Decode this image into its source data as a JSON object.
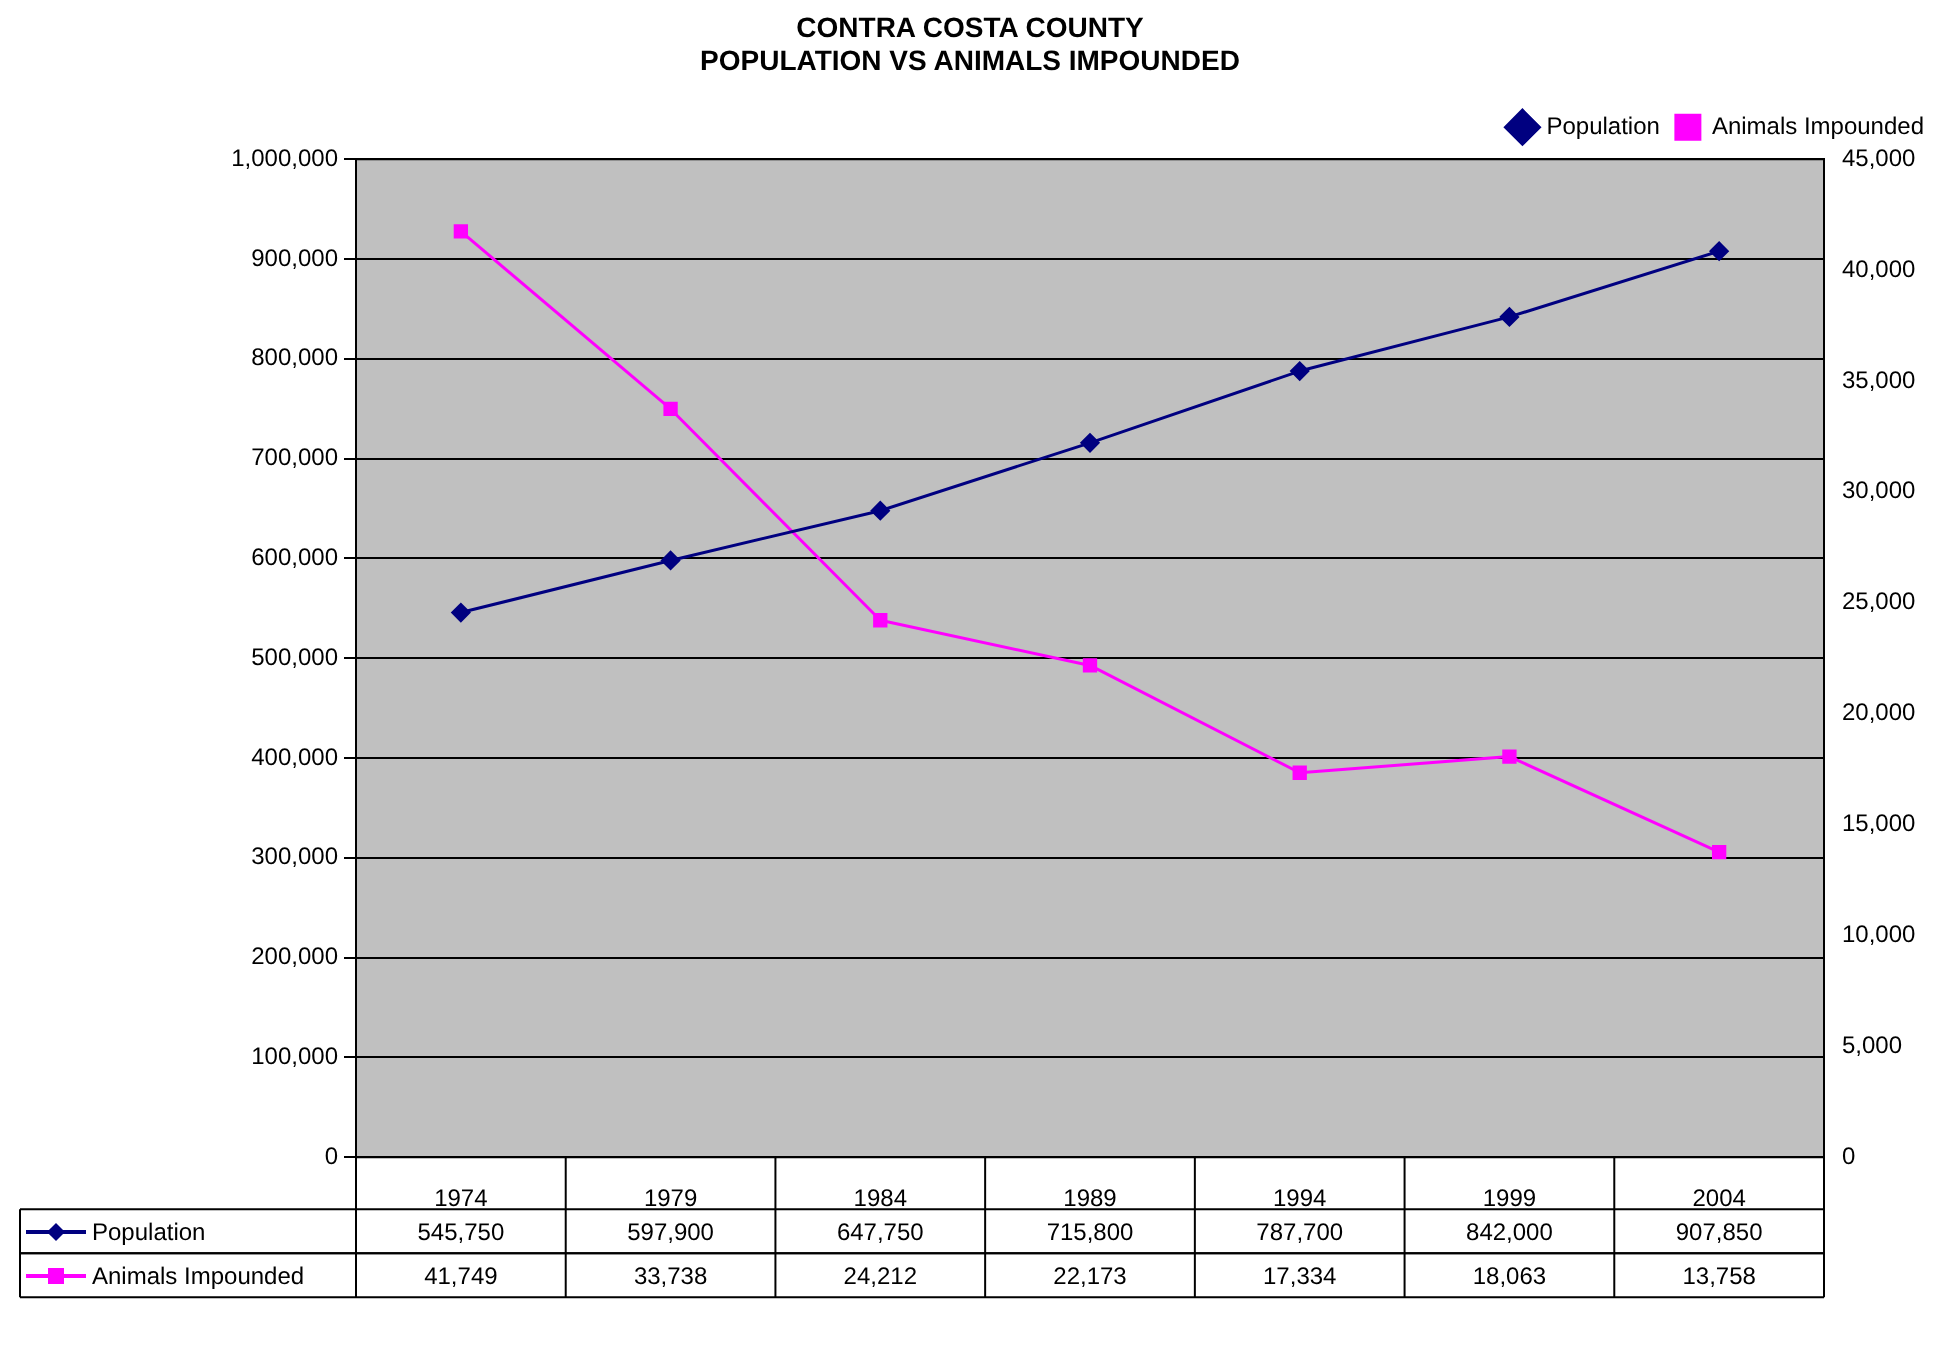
{
  "chart_data": {
    "type": "line",
    "title": "CONTRA COSTA COUNTY",
    "subtitle": "POPULATION VS ANIMALS IMPOUNDED",
    "categories": [
      "1974",
      "1979",
      "1984",
      "1989",
      "1994",
      "1999",
      "2004"
    ],
    "series": [
      {
        "name": "Population",
        "color": "#000080",
        "marker": "diamond",
        "values": [
          545750,
          597900,
          647750,
          715800,
          787700,
          842000,
          907850
        ],
        "value_labels": [
          "545,750",
          "597,900",
          "647,750",
          "715,800",
          "787,700",
          "842,000",
          "907,850"
        ]
      },
      {
        "name": "Animals Impounded",
        "color": "#ff00ff",
        "marker": "square",
        "axis": "y2",
        "values": [
          41749,
          33738,
          24212,
          22173,
          17334,
          18063,
          13758
        ],
        "value_labels": [
          "41,749",
          "33,738",
          "24,212",
          "22,173",
          "17,334",
          "18,063",
          "13,758"
        ]
      }
    ],
    "ylim": [
      0,
      1000000
    ],
    "yticks": [
      0,
      {
        "value": 100000,
        "label": "100,000"
      },
      {
        "value": 200000,
        "label": "200,000"
      },
      {
        "value": 300000,
        "label": "300,000"
      },
      {
        "value": 400000,
        "label": "400,000"
      },
      {
        "value": 500000,
        "label": "500,000"
      },
      {
        "value": 600000,
        "label": "600,000"
      },
      {
        "value": 700000,
        "label": "700,000"
      },
      {
        "value": 800000,
        "label": "800,000"
      },
      {
        "value": 900000,
        "label": "900,000"
      },
      {
        "value": 1000000,
        "label": "1,000,000"
      }
    ],
    "y2lim": [
      0,
      45000
    ],
    "y2ticks": [
      0,
      {
        "value": 5000,
        "label": "5,000"
      },
      {
        "value": 10000,
        "label": "10,000"
      },
      {
        "value": 15000,
        "label": "15,000"
      },
      {
        "value": 20000,
        "label": "20,000"
      },
      {
        "value": 25000,
        "label": "25,000"
      },
      {
        "value": 30000,
        "label": "30,000"
      },
      {
        "value": 35000,
        "label": "35,000"
      },
      {
        "value": 40000,
        "label": "40,000"
      },
      {
        "value": 45000,
        "label": "45,000"
      }
    ],
    "grid": "y",
    "legend": "top right",
    "line_style": "solid"
  }
}
